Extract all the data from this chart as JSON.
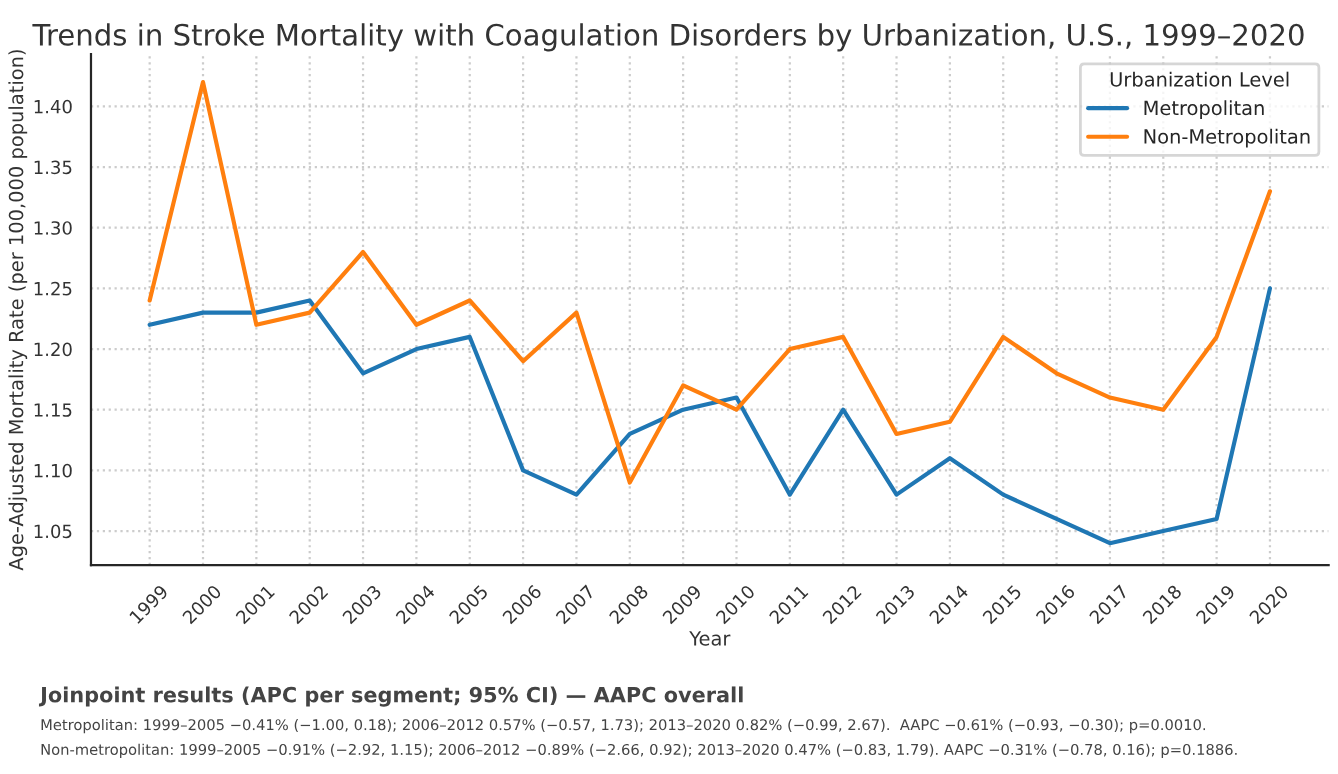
{
  "chart_data": {
    "type": "line",
    "title": "Trends in Stroke Mortality with Coagulation Disorders by Urbanization, U.S., 1999–2020",
    "xlabel": "Year",
    "ylabel": "Age-Adjusted Mortality Rate (per 100,000 population)",
    "legend_title": "Urbanization Level",
    "x": [
      1999,
      2000,
      2001,
      2002,
      2003,
      2004,
      2005,
      2006,
      2007,
      2008,
      2009,
      2010,
      2011,
      2012,
      2013,
      2014,
      2015,
      2016,
      2017,
      2018,
      2019,
      2020
    ],
    "series": [
      {
        "name": "Metropolitan",
        "color": "#1f77b4",
        "values": [
          1.22,
          1.23,
          1.23,
          1.24,
          1.18,
          1.2,
          1.21,
          1.1,
          1.08,
          1.13,
          1.15,
          1.16,
          1.08,
          1.15,
          1.08,
          1.11,
          1.08,
          1.06,
          1.04,
          1.05,
          1.06,
          1.25
        ]
      },
      {
        "name": "Non-Metropolitan",
        "color": "#ff7f0e",
        "values": [
          1.24,
          1.42,
          1.22,
          1.23,
          1.28,
          1.22,
          1.24,
          1.19,
          1.23,
          1.09,
          1.17,
          1.15,
          1.2,
          1.21,
          1.13,
          1.14,
          1.21,
          1.18,
          1.16,
          1.15,
          1.21,
          1.33
        ]
      }
    ],
    "xlim": [
      1997.9,
      2021.1
    ],
    "xticks": [
      1999,
      2000,
      2001,
      2002,
      2003,
      2004,
      2005,
      2006,
      2007,
      2008,
      2009,
      2010,
      2011,
      2012,
      2013,
      2014,
      2015,
      2016,
      2017,
      2018,
      2019,
      2020
    ],
    "ylim": [
      1.022,
      1.443
    ],
    "yticks": [
      {
        "value": 1.05,
        "label": "1.05"
      },
      {
        "value": 1.1,
        "label": "1.10"
      },
      {
        "value": 1.15,
        "label": "1.15"
      },
      {
        "value": 1.2,
        "label": "1.20"
      },
      {
        "value": 1.25,
        "label": "1.25"
      },
      {
        "value": 1.3,
        "label": "1.30"
      },
      {
        "value": 1.35,
        "label": "1.35"
      },
      {
        "value": 1.4,
        "label": "1.40"
      }
    ],
    "grid": true,
    "legend": "top right",
    "marker": "none",
    "line_style": "solid",
    "annotations": [
      "Joinpoint results (APC per segment; 95% CI) — AAPC overall",
      "Metropolitan: 1999–2005 −0.41% (−1.00, 0.18); 2006–2012 0.57% (−0.57, 1.73); 2013–2020 0.82% (−0.99, 2.67).  AAPC −0.61% (−0.93, −0.30); p=0.0010.",
      "Non-metropolitan: 1999–2005 −0.91% (−2.92, 1.15); 2006–2012 −0.89% (−2.66, 0.92); 2013–2020 0.47% (−0.83, 1.79). AAPC −0.31% (−0.78, 0.16); p=0.1886."
    ]
  }
}
